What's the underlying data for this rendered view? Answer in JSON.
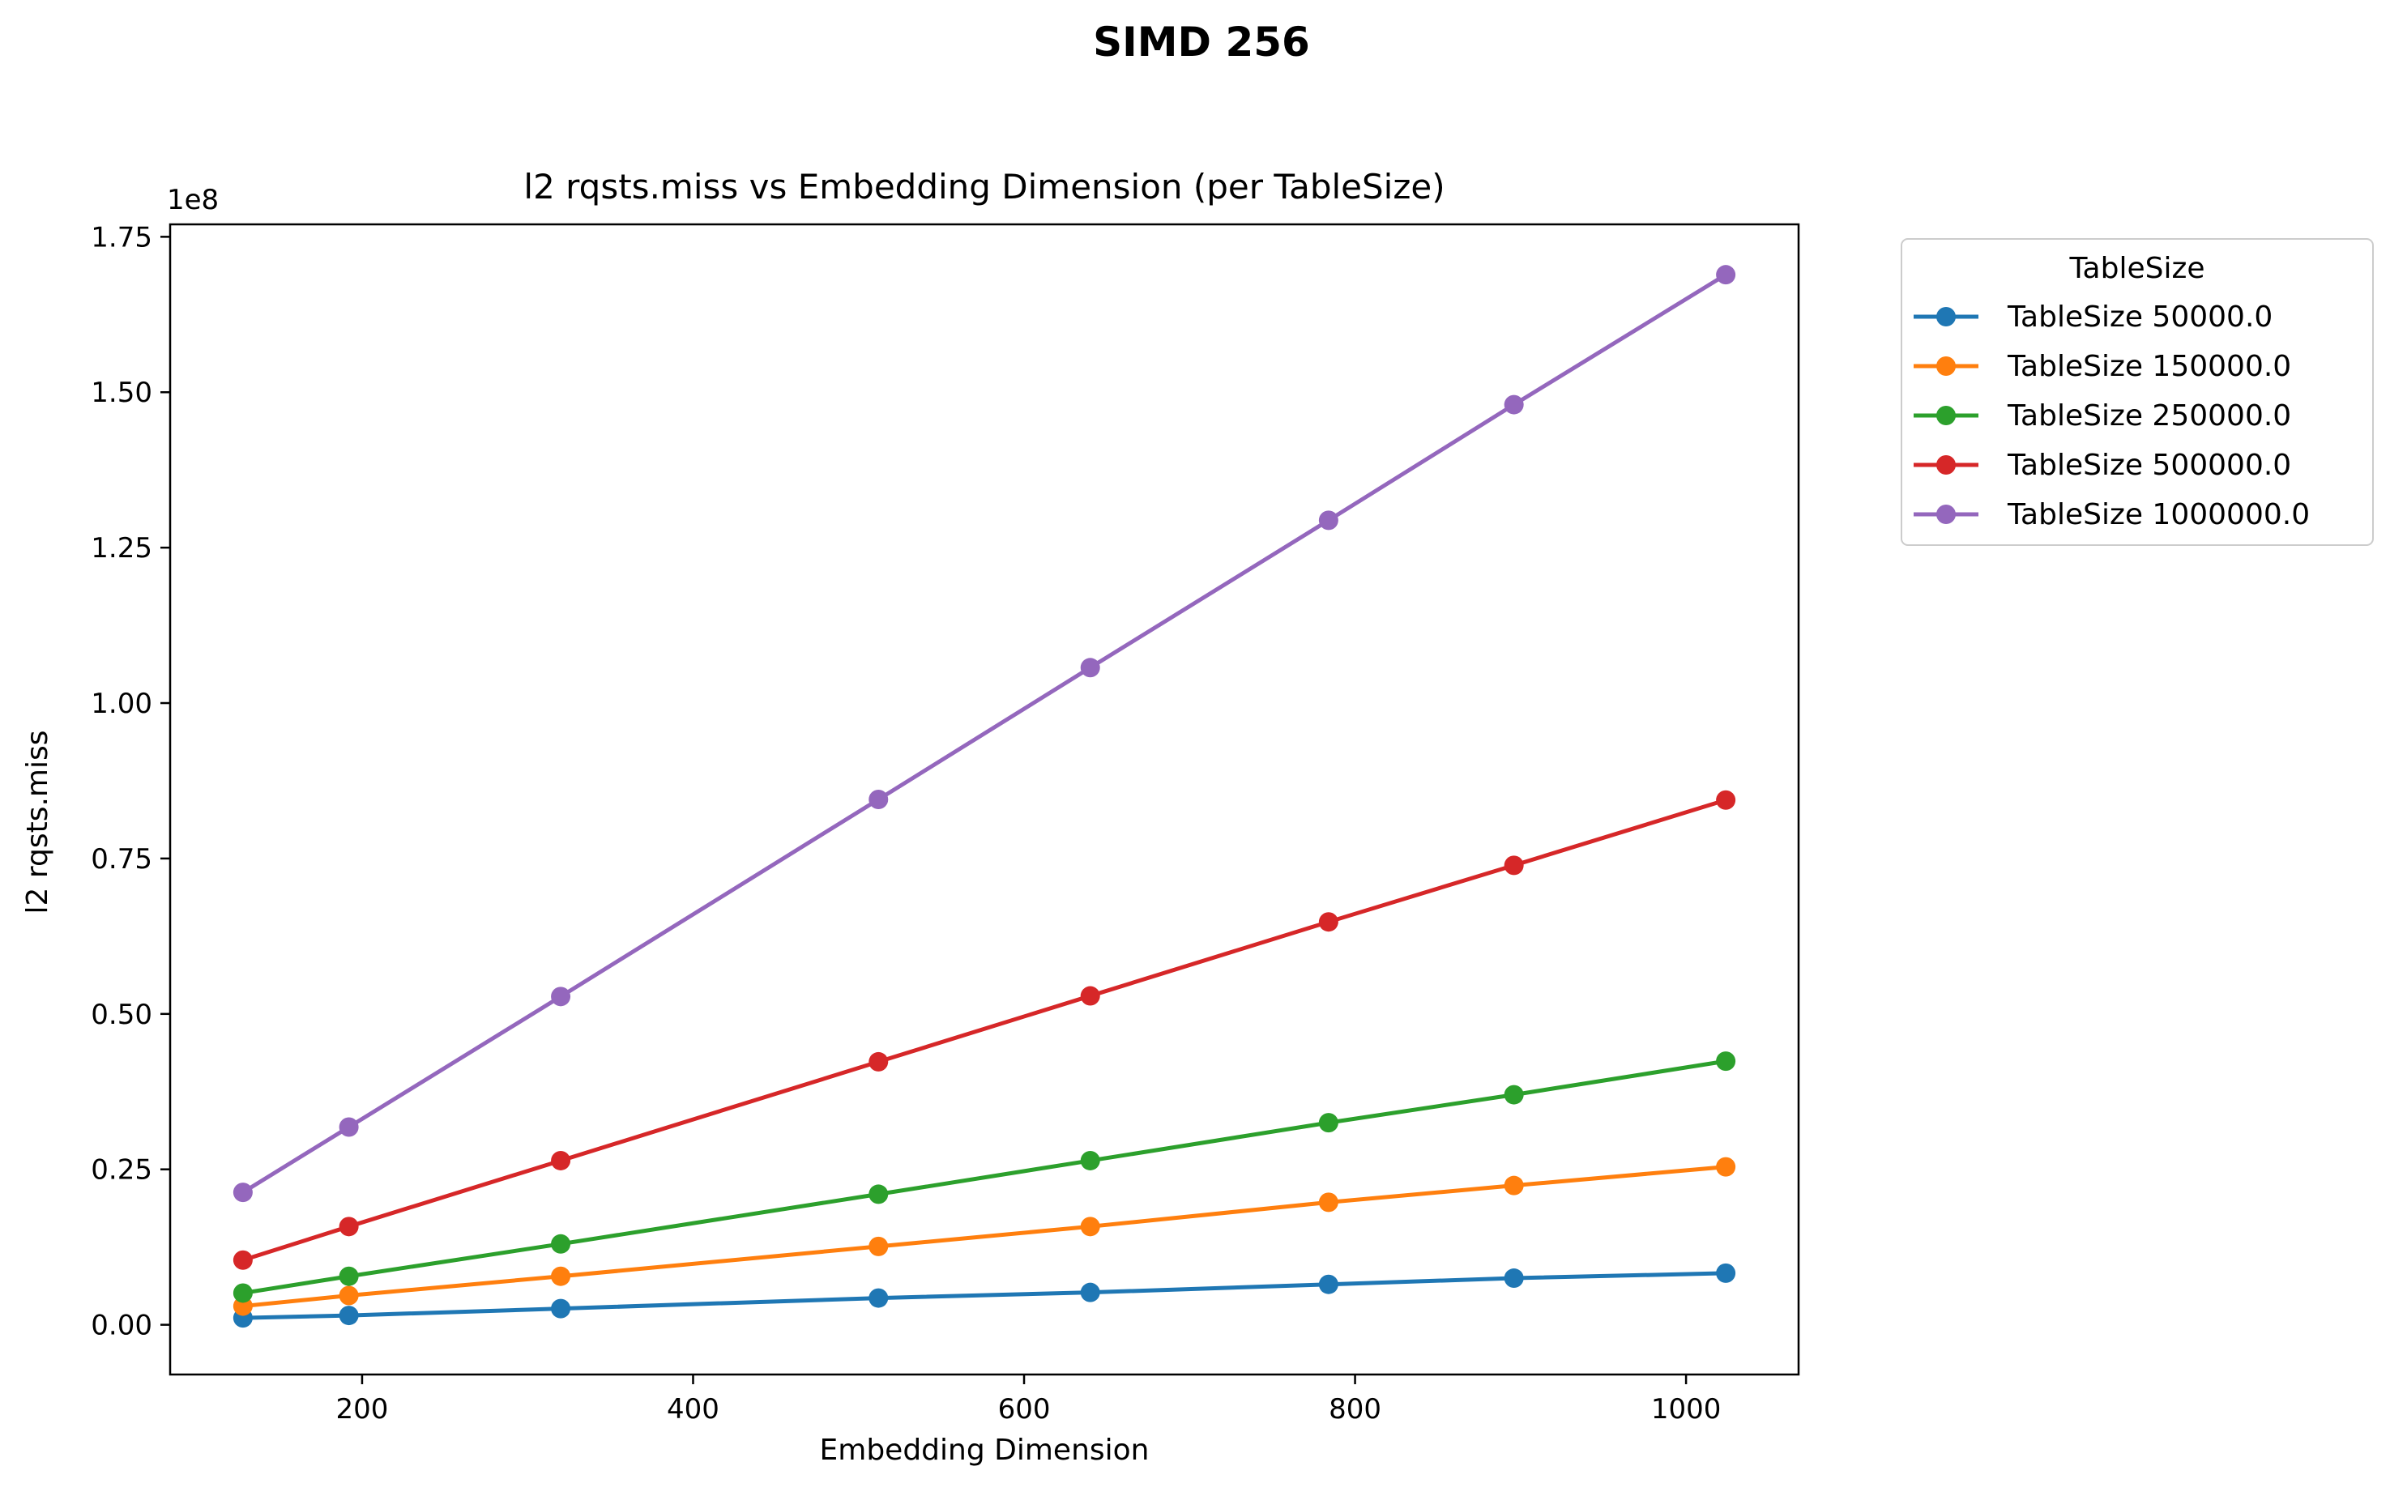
{
  "figure_title": "SIMD 256",
  "chart_data": {
    "type": "line",
    "title": "l2 rqsts.miss vs Embedding Dimension (per TableSize)",
    "xlabel": "Embedding Dimension",
    "ylabel": "l2 rqsts.miss",
    "y_offset_label": "1e8",
    "x": [
      128,
      192,
      320,
      512,
      640,
      784,
      896,
      1024
    ],
    "xlim": [
      84,
      1068
    ],
    "ylim": [
      -8000000,
      177000000
    ],
    "x_ticks": [
      200,
      400,
      600,
      800,
      1000
    ],
    "x_tick_labels": [
      "200",
      "400",
      "600",
      "800",
      "1000"
    ],
    "y_ticks": [
      0,
      25000000,
      50000000,
      75000000,
      100000000,
      125000000,
      150000000,
      175000000
    ],
    "y_tick_labels": [
      "0.00",
      "0.25",
      "0.50",
      "0.75",
      "1.00",
      "1.25",
      "1.50",
      "1.75"
    ],
    "grid": false,
    "legend_title": "TableSize",
    "legend_position": "outside-top-right",
    "series": [
      {
        "name": "TableSize 50000.0",
        "color": "#1f77b4",
        "values": [
          1100000,
          1500000,
          2600000,
          4300000,
          5200000,
          6500000,
          7500000,
          8300000
        ]
      },
      {
        "name": "TableSize 150000.0",
        "color": "#ff7f0e",
        "values": [
          3000000,
          4700000,
          7800000,
          12600000,
          15800000,
          19700000,
          22400000,
          25400000
        ]
      },
      {
        "name": "TableSize 250000.0",
        "color": "#2ca02c",
        "values": [
          5100000,
          7800000,
          13000000,
          21000000,
          26400000,
          32500000,
          37000000,
          42400000
        ]
      },
      {
        "name": "TableSize 500000.0",
        "color": "#d62728",
        "values": [
          10400000,
          15800000,
          26400000,
          42300000,
          52900000,
          64800000,
          73900000,
          84400000
        ]
      },
      {
        "name": "TableSize 1000000.0",
        "color": "#9467bd",
        "values": [
          21300000,
          31800000,
          52800000,
          84500000,
          105700000,
          129400000,
          148000000,
          168900000
        ]
      }
    ]
  }
}
